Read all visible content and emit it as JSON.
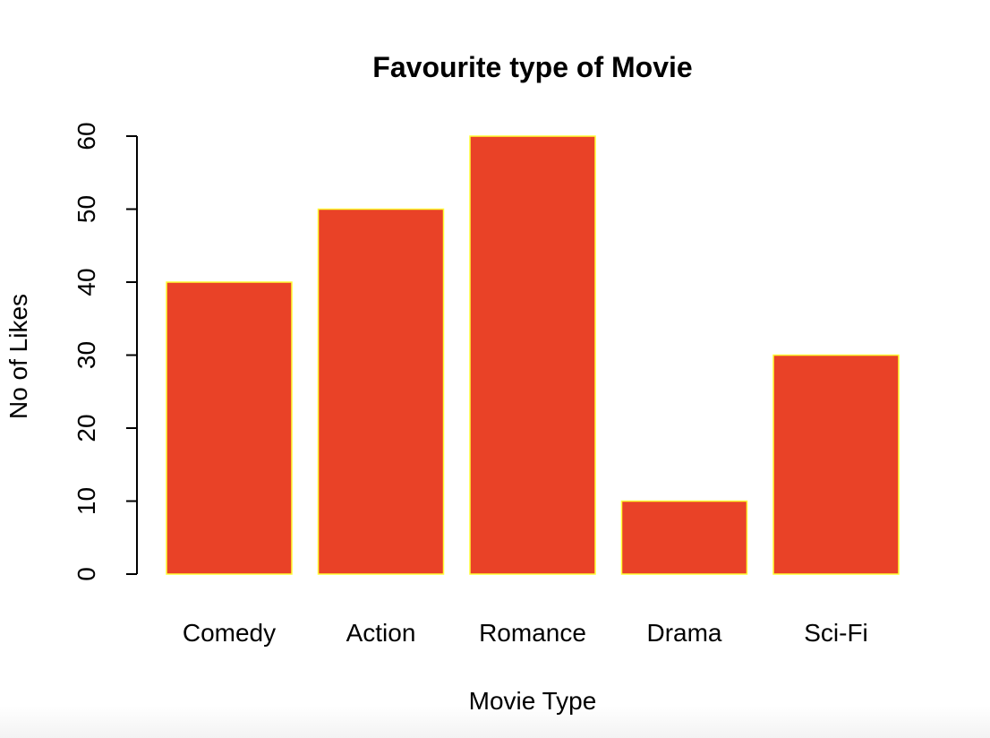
{
  "chart_data": {
    "type": "bar",
    "title": "Favourite type of Movie",
    "xlabel": "Movie Type",
    "ylabel": "No of Likes",
    "categories": [
      "Comedy",
      "Action",
      "Romance",
      "Drama",
      "Sci-Fi"
    ],
    "values": [
      40,
      50,
      60,
      10,
      30
    ],
    "ylim": [
      0,
      60
    ],
    "yticks": [
      0,
      10,
      20,
      30,
      40,
      50,
      60
    ],
    "grid": false,
    "legend": "none",
    "colors": {
      "bar_fill": "#E94227",
      "bar_border": "#FFFF33",
      "axis": "#000000",
      "background": "#FFFFFF"
    }
  }
}
